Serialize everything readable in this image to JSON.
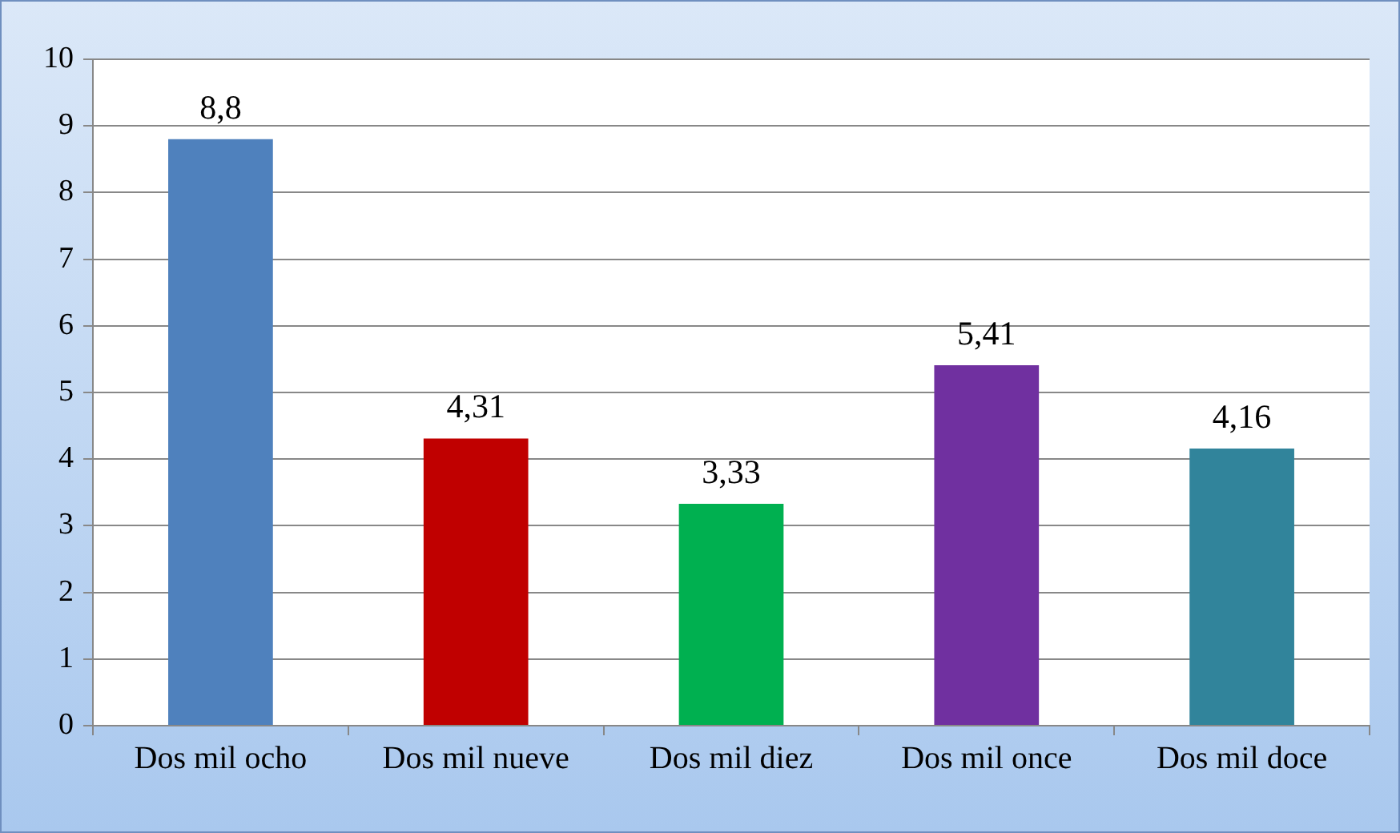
{
  "chart_data": {
    "type": "bar",
    "categories": [
      "Dos mil ocho",
      "Dos mil nueve",
      "Dos mil diez",
      "Dos mil once",
      "Dos mil doce"
    ],
    "values": [
      8.8,
      4.31,
      3.33,
      5.41,
      4.16
    ],
    "value_labels": [
      "8,8",
      "4,31",
      "3,33",
      "5,41",
      "4,16"
    ],
    "colors": [
      "#4f81bd",
      "#c00000",
      "#00b050",
      "#7030a0",
      "#31849b"
    ],
    "ylim": [
      0,
      10
    ],
    "yticks": [
      0,
      1,
      2,
      3,
      4,
      5,
      6,
      7,
      8,
      9,
      10
    ],
    "grid": "y",
    "legend": false
  }
}
